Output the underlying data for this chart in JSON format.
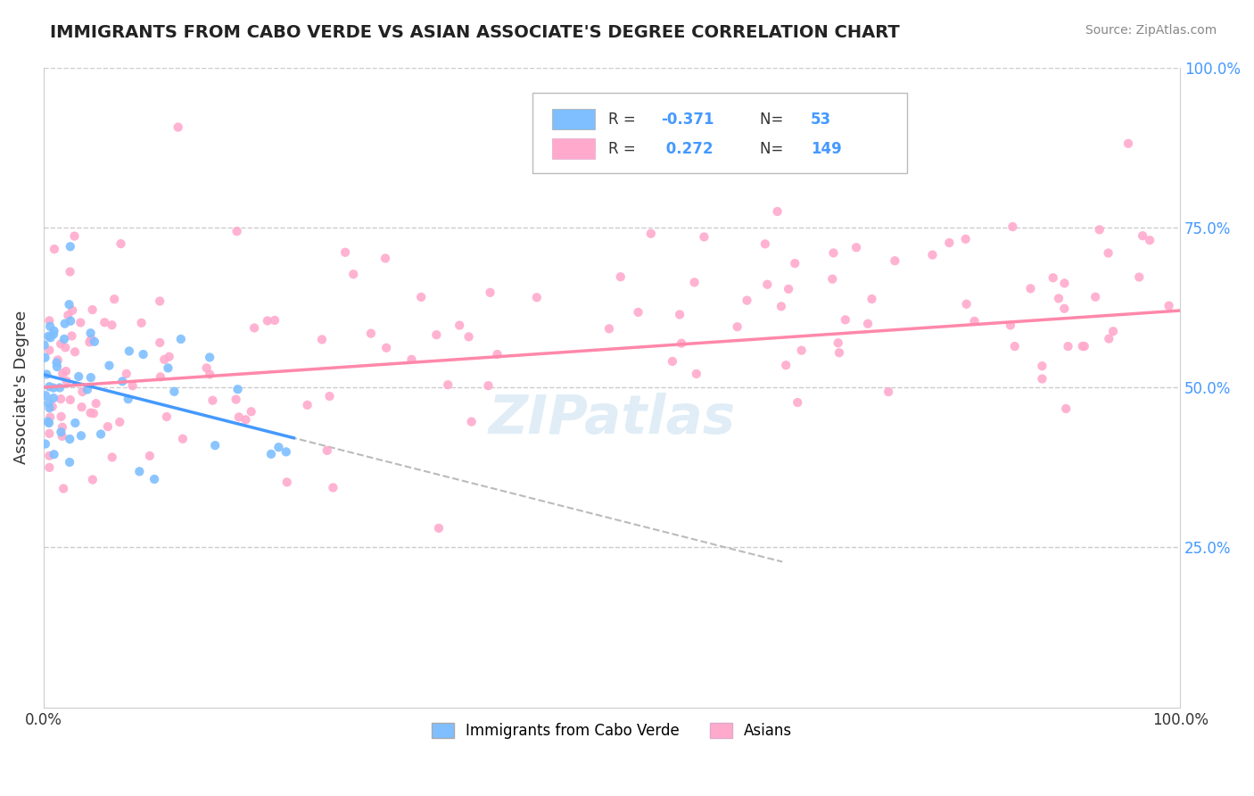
{
  "title": "IMMIGRANTS FROM CABO VERDE VS ASIAN ASSOCIATE'S DEGREE CORRELATION CHART",
  "source": "Source: ZipAtlas.com",
  "ylabel": "Associate's Degree",
  "legend_label1": "Immigrants from Cabo Verde",
  "legend_label2": "Asians",
  "R1": -0.371,
  "N1": 53,
  "R2": 0.272,
  "N2": 149,
  "color1": "#7fbfff",
  "color2": "#ffaacc",
  "line1_color": "#4499ff",
  "line2_color": "#ff88aa",
  "background_color": "#ffffff",
  "grid_color": "#cccccc"
}
